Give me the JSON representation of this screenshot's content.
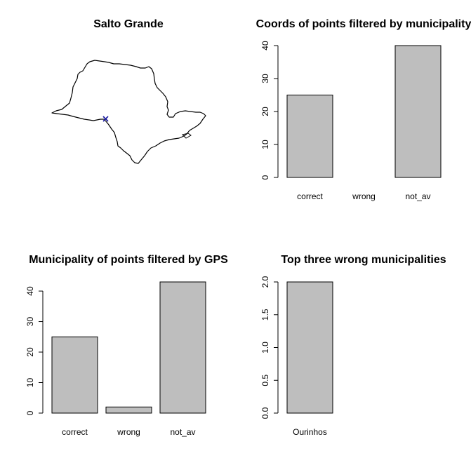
{
  "map": {
    "title": "Salto Grande",
    "point_color": "#1a1aa0"
  },
  "chart_data": [
    {
      "type": "bar",
      "title": "Coords of points filtered by municipality",
      "categories": [
        "correct",
        "wrong",
        "not_av"
      ],
      "values": [
        25,
        0,
        40
      ],
      "ylim": [
        0,
        40
      ],
      "yticks": [
        0,
        10,
        20,
        30,
        40
      ],
      "ytick_labels": [
        "0",
        "10",
        "20",
        "30",
        "40"
      ],
      "xlabel": "",
      "ylabel": "",
      "bar_color": "#bebebe"
    },
    {
      "type": "bar",
      "title": "Municipality of points filtered by GPS",
      "categories": [
        "correct",
        "wrong",
        "not_av"
      ],
      "values": [
        25,
        2,
        43
      ],
      "ylim": [
        0,
        43
      ],
      "yticks": [
        0,
        10,
        20,
        30,
        40
      ],
      "ytick_labels": [
        "0",
        "10",
        "20",
        "30",
        "40"
      ],
      "xlabel": "",
      "ylabel": "",
      "bar_color": "#bebebe"
    },
    {
      "type": "bar",
      "title": "Top three wrong municipalities",
      "categories": [
        "Ourinhos"
      ],
      "values": [
        2
      ],
      "ylim": [
        0,
        2
      ],
      "yticks": [
        0,
        0.5,
        1,
        1.5,
        2
      ],
      "ytick_labels": [
        "0.0",
        "0.5",
        "1.0",
        "1.5",
        "2.0"
      ],
      "xlabel": "",
      "ylabel": "",
      "bar_color": "#bebebe"
    }
  ]
}
